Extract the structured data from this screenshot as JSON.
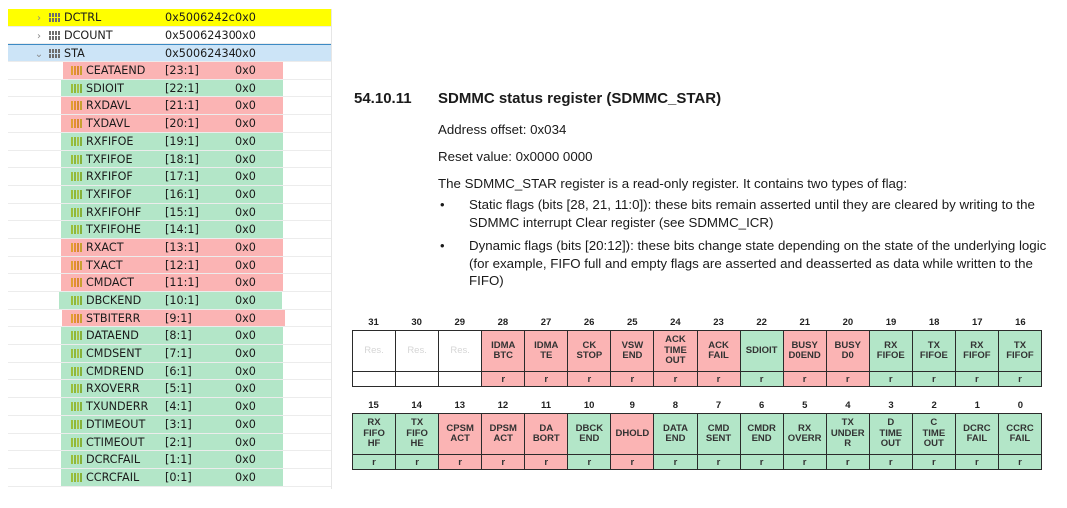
{
  "tree": {
    "colors": {
      "highlight_yellow": "#ffff00",
      "selected_blue": "#cce4f7",
      "static_red": "#fbb4b4",
      "dynamic_green": "#b3e6c8"
    },
    "registers": [
      {
        "name": "DCTRL",
        "address": "0x5006242c",
        "value": "0x0",
        "expanded": false,
        "highlight": "yellow"
      },
      {
        "name": "DCOUNT",
        "address": "0x50062430",
        "value": "0x0",
        "expanded": false,
        "highlight": "none"
      },
      {
        "name": "STA",
        "address": "0x50062434",
        "value": "0x0",
        "expanded": true,
        "highlight": "selected"
      }
    ],
    "fields": [
      {
        "name": "CEATAEND",
        "bits": "[23:1]",
        "value": "0x0",
        "color": "red"
      },
      {
        "name": "SDIOIT",
        "bits": "[22:1]",
        "value": "0x0",
        "color": "green"
      },
      {
        "name": "RXDAVL",
        "bits": "[21:1]",
        "value": "0x0",
        "color": "red"
      },
      {
        "name": "TXDAVL",
        "bits": "[20:1]",
        "value": "0x0",
        "color": "red"
      },
      {
        "name": "RXFIFOE",
        "bits": "[19:1]",
        "value": "0x0",
        "color": "green"
      },
      {
        "name": "TXFIFOE",
        "bits": "[18:1]",
        "value": "0x0",
        "color": "green"
      },
      {
        "name": "RXFIFOF",
        "bits": "[17:1]",
        "value": "0x0",
        "color": "green"
      },
      {
        "name": "TXFIFOF",
        "bits": "[16:1]",
        "value": "0x0",
        "color": "green"
      },
      {
        "name": "RXFIFOHF",
        "bits": "[15:1]",
        "value": "0x0",
        "color": "green"
      },
      {
        "name": "TXFIFOHE",
        "bits": "[14:1]",
        "value": "0x0",
        "color": "green"
      },
      {
        "name": "RXACT",
        "bits": "[13:1]",
        "value": "0x0",
        "color": "red"
      },
      {
        "name": "TXACT",
        "bits": "[12:1]",
        "value": "0x0",
        "color": "red"
      },
      {
        "name": "CMDACT",
        "bits": "[11:1]",
        "value": "0x0",
        "color": "red"
      },
      {
        "name": "DBCKEND",
        "bits": "[10:1]",
        "value": "0x0",
        "color": "green"
      },
      {
        "name": "STBITERR",
        "bits": "[9:1]",
        "value": "0x0",
        "color": "red"
      },
      {
        "name": "DATAEND",
        "bits": "[8:1]",
        "value": "0x0",
        "color": "green"
      },
      {
        "name": "CMDSENT",
        "bits": "[7:1]",
        "value": "0x0",
        "color": "green"
      },
      {
        "name": "CMDREND",
        "bits": "[6:1]",
        "value": "0x0",
        "color": "green"
      },
      {
        "name": "RXOVERR",
        "bits": "[5:1]",
        "value": "0x0",
        "color": "green"
      },
      {
        "name": "TXUNDERR",
        "bits": "[4:1]",
        "value": "0x0",
        "color": "green"
      },
      {
        "name": "DTIMEOUT",
        "bits": "[3:1]",
        "value": "0x0",
        "color": "green"
      },
      {
        "name": "CTIMEOUT",
        "bits": "[2:1]",
        "value": "0x0",
        "color": "green"
      },
      {
        "name": "DCRCFAIL",
        "bits": "[1:1]",
        "value": "0x0",
        "color": "green"
      },
      {
        "name": "CCRCFAIL",
        "bits": "[0:1]",
        "value": "0x0",
        "color": "green"
      }
    ]
  },
  "doc": {
    "section_number": "54.10.11",
    "section_title": "SDMMC status register (SDMMC_STAR)",
    "address_offset": "Address offset: 0x034",
    "reset_value": "Reset value: 0x0000 0000",
    "intro": "The SDMMC_STAR register is a read-only register. It contains two types of flag:",
    "bullet_symbol": "•",
    "bullets": [
      "Static flags (bits [28, 21, 11:0]): these bits remain asserted until they are cleared by writing to the SDMMC interrupt Clear register (see SDMMC_ICR)",
      "Dynamic flags (bits [20:12]): these bits change state depending on the state of the underlying logic (for example, FIFO full and empty flags are asserted and deasserted as data while written to the FIFO)"
    ]
  },
  "bit_table": {
    "upper": [
      {
        "bit": "31",
        "name": "Res.",
        "access": "",
        "color": "res"
      },
      {
        "bit": "30",
        "name": "Res.",
        "access": "",
        "color": "res"
      },
      {
        "bit": "29",
        "name": "Res.",
        "access": "",
        "color": "res"
      },
      {
        "bit": "28",
        "name": "IDMA\nBTC",
        "access": "r",
        "color": "red"
      },
      {
        "bit": "27",
        "name": "IDMA\nTE",
        "access": "r",
        "color": "red"
      },
      {
        "bit": "26",
        "name": "CK\nSTOP",
        "access": "r",
        "color": "red"
      },
      {
        "bit": "25",
        "name": "VSW\nEND",
        "access": "r",
        "color": "red"
      },
      {
        "bit": "24",
        "name": "ACK\nTIME\nOUT",
        "access": "r",
        "color": "red"
      },
      {
        "bit": "23",
        "name": "ACK\nFAIL",
        "access": "r",
        "color": "red"
      },
      {
        "bit": "22",
        "name": "SDIOIT",
        "access": "r",
        "color": "green"
      },
      {
        "bit": "21",
        "name": "BUSY\nD0END",
        "access": "r",
        "color": "red"
      },
      {
        "bit": "20",
        "name": "BUSY\nD0",
        "access": "r",
        "color": "red"
      },
      {
        "bit": "19",
        "name": "RX\nFIFOE",
        "access": "r",
        "color": "green"
      },
      {
        "bit": "18",
        "name": "TX\nFIFOE",
        "access": "r",
        "color": "green"
      },
      {
        "bit": "17",
        "name": "RX\nFIFOF",
        "access": "r",
        "color": "green"
      },
      {
        "bit": "16",
        "name": "TX\nFIFOF",
        "access": "r",
        "color": "green"
      }
    ],
    "lower": [
      {
        "bit": "15",
        "name": "RX\nFIFO\nHF",
        "access": "r",
        "color": "green"
      },
      {
        "bit": "14",
        "name": "TX\nFIFO\nHE",
        "access": "r",
        "color": "green"
      },
      {
        "bit": "13",
        "name": "CPSM\nACT",
        "access": "r",
        "color": "red"
      },
      {
        "bit": "12",
        "name": "DPSM\nACT",
        "access": "r",
        "color": "red"
      },
      {
        "bit": "11",
        "name": "DA\nBORT",
        "access": "r",
        "color": "red"
      },
      {
        "bit": "10",
        "name": "DBCK\nEND",
        "access": "r",
        "color": "green"
      },
      {
        "bit": "9",
        "name": "DHOLD",
        "access": "r",
        "color": "red"
      },
      {
        "bit": "8",
        "name": "DATA\nEND",
        "access": "r",
        "color": "green"
      },
      {
        "bit": "7",
        "name": "CMD\nSENT",
        "access": "r",
        "color": "green"
      },
      {
        "bit": "6",
        "name": "CMDR\nEND",
        "access": "r",
        "color": "green"
      },
      {
        "bit": "5",
        "name": "RX\nOVERR",
        "access": "r",
        "color": "green"
      },
      {
        "bit": "4",
        "name": "TX\nUNDER\nR",
        "access": "r",
        "color": "green"
      },
      {
        "bit": "3",
        "name": "D\nTIME\nOUT",
        "access": "r",
        "color": "green"
      },
      {
        "bit": "2",
        "name": "C\nTIME\nOUT",
        "access": "r",
        "color": "green"
      },
      {
        "bit": "1",
        "name": "DCRC\nFAIL",
        "access": "r",
        "color": "green"
      },
      {
        "bit": "0",
        "name": "CCRC\nFAIL",
        "access": "r",
        "color": "green"
      }
    ]
  }
}
